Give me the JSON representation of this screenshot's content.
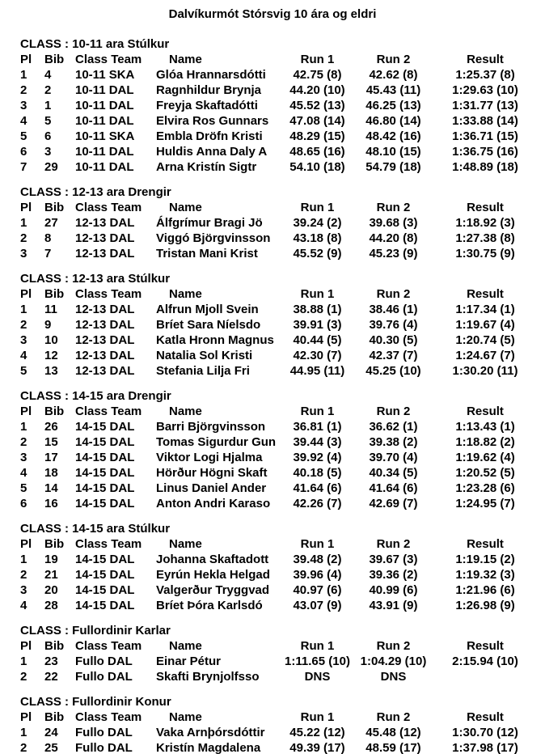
{
  "page": {
    "title": "Dalvíkurmót Stórsvig 10 ára og eldri"
  },
  "table": {
    "columns": [
      "Pl",
      "Bib",
      "Class Team",
      "Name",
      "Run 1",
      "Run 2",
      "Result"
    ],
    "sections": [
      {
        "heading": "CLASS : 10-11 ara Stúlkur",
        "rows": [
          [
            "1",
            "4",
            "10-11 SKA",
            "Glóa Hrannarsdótti",
            "42.75 (8)",
            "42.62 (8)",
            "1:25.37 (8)"
          ],
          [
            "2",
            "2",
            "10-11 DAL",
            "Ragnhildur Brynja",
            "44.20 (10)",
            "45.43 (11)",
            "1:29.63 (10)"
          ],
          [
            "3",
            "1",
            "10-11 DAL",
            "Freyja Skaftadótti",
            "45.52 (13)",
            "46.25 (13)",
            "1:31.77 (13)"
          ],
          [
            "4",
            "5",
            "10-11 DAL",
            "Elvira Ros Gunnars",
            "47.08 (14)",
            "46.80 (14)",
            "1:33.88 (14)"
          ],
          [
            "5",
            "6",
            "10-11 SKA",
            "Embla Dröfn Kristi",
            "48.29 (15)",
            "48.42 (16)",
            "1:36.71 (15)"
          ],
          [
            "6",
            "3",
            "10-11 DAL",
            "Huldis Anna Daly A",
            "48.65 (16)",
            "48.10 (15)",
            "1:36.75 (16)"
          ],
          [
            "7",
            "29",
            "10-11 DAL",
            "Arna Kristín Sigtr",
            "54.10 (18)",
            "54.79 (18)",
            "1:48.89 (18)"
          ]
        ]
      },
      {
        "heading": "CLASS : 12-13 ara Drengir",
        "rows": [
          [
            "1",
            "27",
            "12-13 DAL",
            "Álfgrímur Bragi Jö",
            "39.24 (2)",
            "39.68 (3)",
            "1:18.92 (3)"
          ],
          [
            "2",
            "8",
            "12-13 DAL",
            "Viggó Björgvinsson",
            "43.18 (8)",
            "44.20 (8)",
            "1:27.38 (8)"
          ],
          [
            "3",
            "7",
            "12-13 DAL",
            "Tristan Mani Krist",
            "45.52 (9)",
            "45.23 (9)",
            "1:30.75 (9)"
          ]
        ]
      },
      {
        "heading": "CLASS : 12-13 ara Stúlkur",
        "rows": [
          [
            "1",
            "11",
            "12-13 DAL",
            "Alfrun Mjoll Svein",
            "38.88 (1)",
            "38.46 (1)",
            "1:17.34 (1)"
          ],
          [
            "2",
            "9",
            "12-13 DAL",
            "Bríet Sara Níelsdo",
            "39.91 (3)",
            "39.76 (4)",
            "1:19.67 (4)"
          ],
          [
            "3",
            "10",
            "12-13 DAL",
            "Katla Hronn Magnus",
            "40.44 (5)",
            "40.30 (5)",
            "1:20.74 (5)"
          ],
          [
            "4",
            "12",
            "12-13 DAL",
            "Natalia Sol Kristi",
            "42.30 (7)",
            "42.37 (7)",
            "1:24.67 (7)"
          ],
          [
            "5",
            "13",
            "12-13 DAL",
            "Stefania Lilja Fri",
            "44.95 (11)",
            "45.25 (10)",
            "1:30.20 (11)"
          ]
        ]
      },
      {
        "heading": "CLASS : 14-15 ara Drengir",
        "rows": [
          [
            "1",
            "26",
            "14-15 DAL",
            "Barri Björgvinsson",
            "36.81 (1)",
            "36.62 (1)",
            "1:13.43 (1)"
          ],
          [
            "2",
            "15",
            "14-15 DAL",
            "Tomas Sigurdur Gun",
            "39.44 (3)",
            "39.38 (2)",
            "1:18.82 (2)"
          ],
          [
            "3",
            "17",
            "14-15 DAL",
            "Viktor Logi Hjalma",
            "39.92 (4)",
            "39.70 (4)",
            "1:19.62 (4)"
          ],
          [
            "4",
            "18",
            "14-15 DAL",
            "Hörður Högni Skaft",
            "40.18 (5)",
            "40.34 (5)",
            "1:20.52 (5)"
          ],
          [
            "5",
            "14",
            "14-15 DAL",
            "Linus Daniel Ander",
            "41.64 (6)",
            "41.64 (6)",
            "1:23.28 (6)"
          ],
          [
            "6",
            "16",
            "14-15 DAL",
            "Anton Andri Karaso",
            "42.26 (7)",
            "42.69 (7)",
            "1:24.95 (7)"
          ]
        ]
      },
      {
        "heading": "CLASS : 14-15 ara Stúlkur",
        "rows": [
          [
            "1",
            "19",
            "14-15 DAL",
            "Johanna Skaftadott",
            "39.48 (2)",
            "39.67 (3)",
            "1:19.15 (2)"
          ],
          [
            "2",
            "21",
            "14-15 DAL",
            "Eyrún Hekla Helgad",
            "39.96 (4)",
            "39.36 (2)",
            "1:19.32 (3)"
          ],
          [
            "3",
            "20",
            "14-15 DAL",
            "Valgerður Tryggvad",
            "40.97 (6)",
            "40.99 (6)",
            "1:21.96 (6)"
          ],
          [
            "4",
            "28",
            "14-15 DAL",
            "Bríet Þóra Karlsdó",
            "43.07 (9)",
            "43.91 (9)",
            "1:26.98 (9)"
          ]
        ]
      },
      {
        "heading": "CLASS : Fullordinir Karlar",
        "rows": [
          [
            "1",
            "23",
            "Fullo DAL",
            "Einar Pétur",
            "1:11.65 (10)",
            "1:04.29 (10)",
            "2:15.94 (10)"
          ],
          [
            "2",
            "22",
            "Fullo DAL",
            "Skafti Brynjolfsso",
            "DNS",
            "DNS",
            ""
          ]
        ]
      },
      {
        "heading": "CLASS : Fullordinir Konur",
        "rows": [
          [
            "1",
            "24",
            "Fullo DAL",
            "Vaka Arnþórsdóttir",
            "45.22 (12)",
            "45.48 (12)",
            "1:30.70 (12)"
          ],
          [
            "2",
            "25",
            "Fullo DAL",
            "Kristín Magdalena",
            "49.39 (17)",
            "48.59 (17)",
            "1:37.98 (17)"
          ]
        ]
      }
    ]
  }
}
